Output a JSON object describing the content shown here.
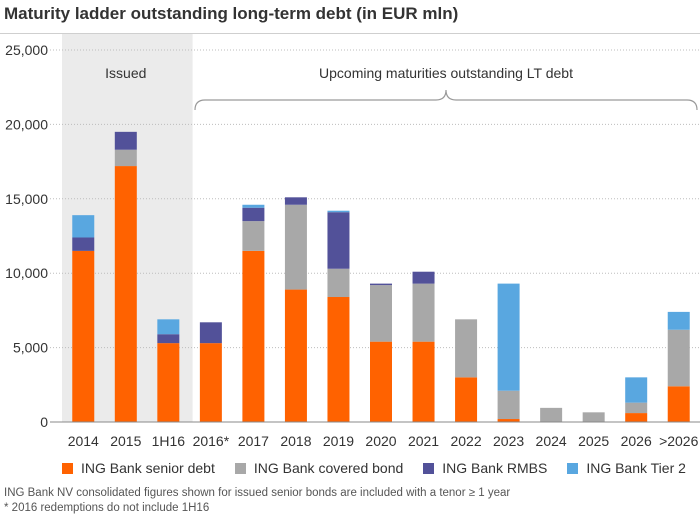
{
  "chart_data": {
    "type": "bar",
    "stacked": true,
    "title": "Maturity ladder outstanding long-term debt (in EUR mln)",
    "xlabel": "",
    "ylabel": "",
    "categories": [
      "2014",
      "2015",
      "1H16",
      "2016*",
      "2017",
      "2018",
      "2019",
      "2020",
      "2021",
      "2022",
      "2023",
      "2024",
      "2025",
      "2026",
      ">2026"
    ],
    "series": [
      {
        "name": "ING Bank senior debt",
        "color": "#ff6200",
        "values": [
          11500,
          17200,
          5300,
          5300,
          11500,
          8900,
          8400,
          5400,
          5400,
          3000,
          200,
          0,
          0,
          600,
          2400
        ]
      },
      {
        "name": "ING Bank covered bond",
        "color": "#a8a8a8",
        "values": [
          0,
          1100,
          0,
          0,
          2000,
          5700,
          1900,
          3800,
          3900,
          3900,
          1900,
          950,
          650,
          700,
          3800
        ]
      },
      {
        "name": "ING Bank RMBS",
        "color": "#525199",
        "values": [
          900,
          1200,
          600,
          1400,
          900,
          500,
          3800,
          100,
          800,
          0,
          0,
          0,
          0,
          0,
          0
        ]
      },
      {
        "name": "ING Bank Tier 2",
        "color": "#59a7e0",
        "values": [
          1500,
          0,
          1000,
          0,
          200,
          0,
          100,
          0,
          0,
          0,
          7200,
          0,
          0,
          1700,
          1200
        ]
      }
    ],
    "ylim": [
      0,
      25000
    ],
    "yticks": [
      0,
      5000,
      10000,
      15000,
      20000,
      25000
    ],
    "ytick_labels": [
      "0",
      "5,000",
      "10,000",
      "15,000",
      "20,000",
      "25,000"
    ],
    "grid": true,
    "legend_position": "bottom",
    "annotations": {
      "issued": "Issued",
      "upcoming": "Upcoming maturities outstanding LT debt"
    },
    "issued_categories": [
      "2014",
      "2015",
      "1H16"
    ]
  },
  "footnotes": [
    "ING Bank NV consolidated figures shown for issued senior bonds are included with a tenor ≥ 1 year",
    "* 2016 redemptions do not include 1H16"
  ]
}
